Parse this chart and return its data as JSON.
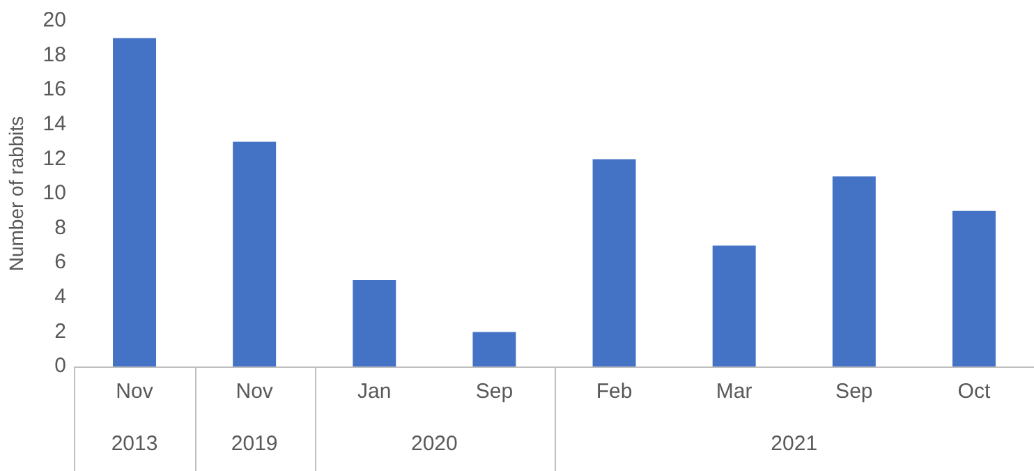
{
  "chart_data": {
    "type": "bar",
    "ylabel": "Number of rabbits",
    "categories": [
      "Nov",
      "Nov",
      "Jan",
      "Sep",
      "Feb",
      "Mar",
      "Sep",
      "Oct"
    ],
    "values": [
      19,
      13,
      5,
      2,
      12,
      7,
      11,
      9
    ],
    "color": "#4472c4",
    "ylim": [
      0,
      20
    ],
    "yticks": [
      0,
      2,
      4,
      6,
      8,
      10,
      12,
      14,
      16,
      18,
      20
    ],
    "grid": false,
    "legend": false,
    "annotations": [
      "2013",
      "2019",
      "2020",
      "2021"
    ]
  }
}
